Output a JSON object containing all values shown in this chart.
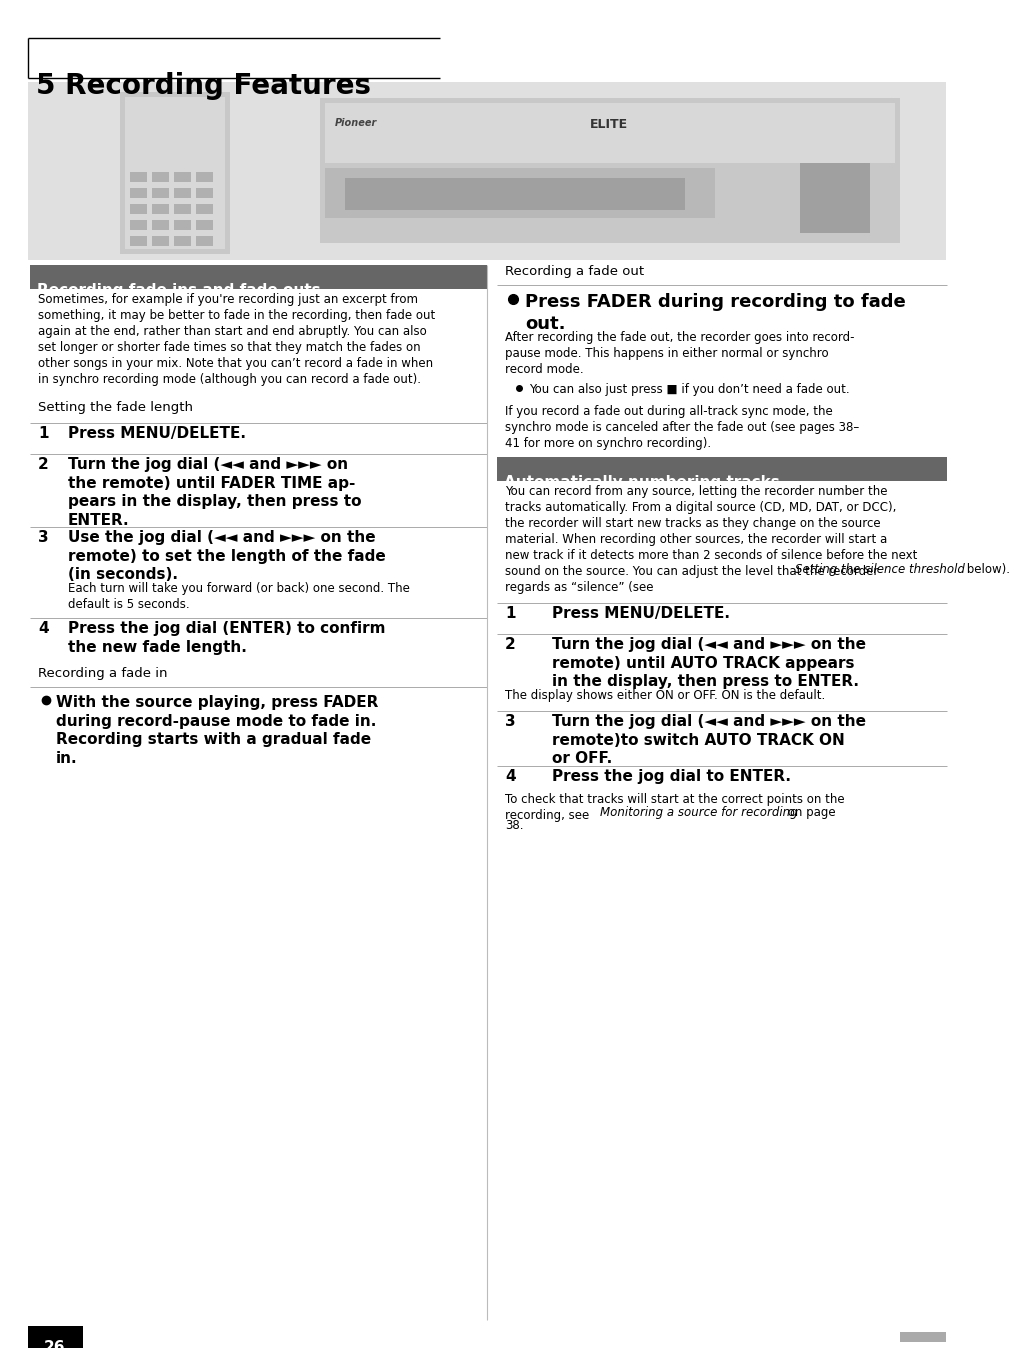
{
  "page_title": "5 Recording Features",
  "bg_color": "#ffffff",
  "section1_header": "Recording fade ins and fade outs",
  "section1_header_bg": "#666666",
  "section1_header_color": "#ffffff",
  "section2_header": "Automatically numbering tracks",
  "section2_header_bg": "#666666",
  "section2_header_color": "#ffffff",
  "page_number": "26",
  "image_bg": "#e0e0e0",
  "divider_color": "#999999",
  "text_color": "#000000"
}
